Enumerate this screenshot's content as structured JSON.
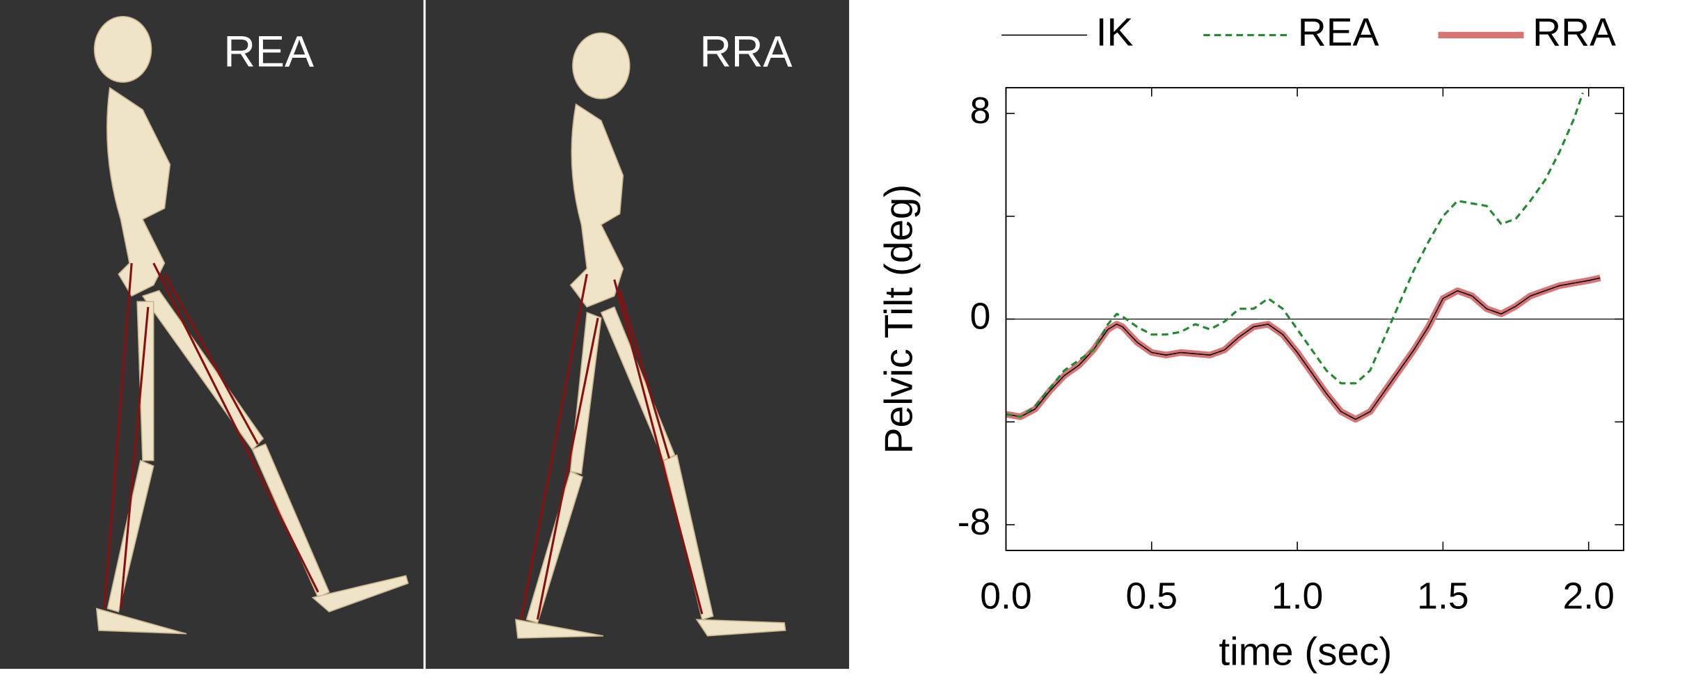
{
  "panels": [
    {
      "label": "REA"
    },
    {
      "label": "RRA"
    }
  ],
  "chart_data": {
    "type": "line",
    "xlabel": "time (sec)",
    "ylabel": "Pelvic Tilt (deg)",
    "xlim": [
      0,
      2.12
    ],
    "ylim": [
      -9,
      9
    ],
    "xticks": [
      {
        "value": 0,
        "label": "0.0"
      },
      0.5,
      {
        "value": 1,
        "label": "1.0"
      },
      1.5,
      {
        "value": 2,
        "label": "2.0"
      }
    ],
    "yticks": [
      -8,
      0,
      8
    ],
    "yticks_minor": [
      -4,
      4
    ],
    "zero_line": true,
    "legend": "top",
    "series": [
      {
        "name": "RRA",
        "color": "#d87474",
        "style": "thick",
        "x": [
          0,
          0.05,
          0.1,
          0.15,
          0.2,
          0.25,
          0.3,
          0.35,
          0.38,
          0.4,
          0.45,
          0.5,
          0.55,
          0.6,
          0.7,
          0.75,
          0.8,
          0.85,
          0.9,
          0.95,
          1.0,
          1.05,
          1.1,
          1.15,
          1.2,
          1.25,
          1.3,
          1.35,
          1.4,
          1.45,
          1.5,
          1.55,
          1.6,
          1.65,
          1.7,
          1.75,
          1.8,
          1.85,
          1.9,
          1.95,
          2.0,
          2.04
        ],
        "values": [
          -3.7,
          -3.8,
          -3.5,
          -2.8,
          -2.2,
          -1.8,
          -1.2,
          -0.4,
          -0.2,
          -0.3,
          -0.9,
          -1.3,
          -1.4,
          -1.3,
          -1.4,
          -1.2,
          -0.7,
          -0.3,
          -0.2,
          -0.6,
          -1.3,
          -2.1,
          -2.9,
          -3.6,
          -3.9,
          -3.6,
          -2.8,
          -2.0,
          -1.2,
          -0.3,
          0.8,
          1.1,
          0.9,
          0.4,
          0.2,
          0.5,
          0.9,
          1.1,
          1.3,
          1.4,
          1.5,
          1.6
        ]
      },
      {
        "name": "IK",
        "color": "#000000",
        "style": "thin",
        "x": [
          0,
          0.05,
          0.1,
          0.15,
          0.2,
          0.25,
          0.3,
          0.35,
          0.38,
          0.4,
          0.45,
          0.5,
          0.55,
          0.6,
          0.7,
          0.75,
          0.8,
          0.85,
          0.9,
          0.95,
          1.0,
          1.05,
          1.1,
          1.15,
          1.2,
          1.25,
          1.3,
          1.35,
          1.4,
          1.45,
          1.5,
          1.55,
          1.6,
          1.65,
          1.7,
          1.75,
          1.8,
          1.85,
          1.9,
          1.95,
          2.0,
          2.04
        ],
        "values": [
          -3.7,
          -3.8,
          -3.5,
          -2.8,
          -2.2,
          -1.8,
          -1.2,
          -0.4,
          -0.2,
          -0.3,
          -0.9,
          -1.3,
          -1.4,
          -1.3,
          -1.4,
          -1.2,
          -0.7,
          -0.3,
          -0.2,
          -0.6,
          -1.3,
          -2.1,
          -2.9,
          -3.6,
          -3.9,
          -3.6,
          -2.8,
          -2.0,
          -1.2,
          -0.3,
          0.8,
          1.1,
          0.9,
          0.4,
          0.2,
          0.5,
          0.9,
          1.1,
          1.3,
          1.4,
          1.5,
          1.6
        ]
      },
      {
        "name": "REA",
        "color": "#1f8a2e",
        "style": "dashed",
        "x": [
          0,
          0.05,
          0.1,
          0.15,
          0.2,
          0.25,
          0.3,
          0.35,
          0.38,
          0.4,
          0.45,
          0.5,
          0.55,
          0.6,
          0.65,
          0.7,
          0.75,
          0.8,
          0.85,
          0.9,
          0.95,
          1.0,
          1.05,
          1.1,
          1.15,
          1.2,
          1.25,
          1.3,
          1.35,
          1.4,
          1.45,
          1.5,
          1.55,
          1.6,
          1.65,
          1.7,
          1.75,
          1.8,
          1.85,
          1.9,
          1.95,
          1.98
        ],
        "values": [
          -3.7,
          -3.8,
          -3.4,
          -2.7,
          -2.0,
          -1.6,
          -1.2,
          -0.2,
          0.2,
          0.1,
          -0.3,
          -0.6,
          -0.6,
          -0.5,
          -0.2,
          -0.4,
          -0.1,
          0.4,
          0.4,
          0.8,
          0.4,
          -0.4,
          -1.2,
          -2.0,
          -2.5,
          -2.5,
          -2.0,
          -0.7,
          0.6,
          1.9,
          3.0,
          4.0,
          4.6,
          4.5,
          4.4,
          3.7,
          3.9,
          4.6,
          5.4,
          6.5,
          7.8,
          8.8
        ]
      }
    ]
  }
}
